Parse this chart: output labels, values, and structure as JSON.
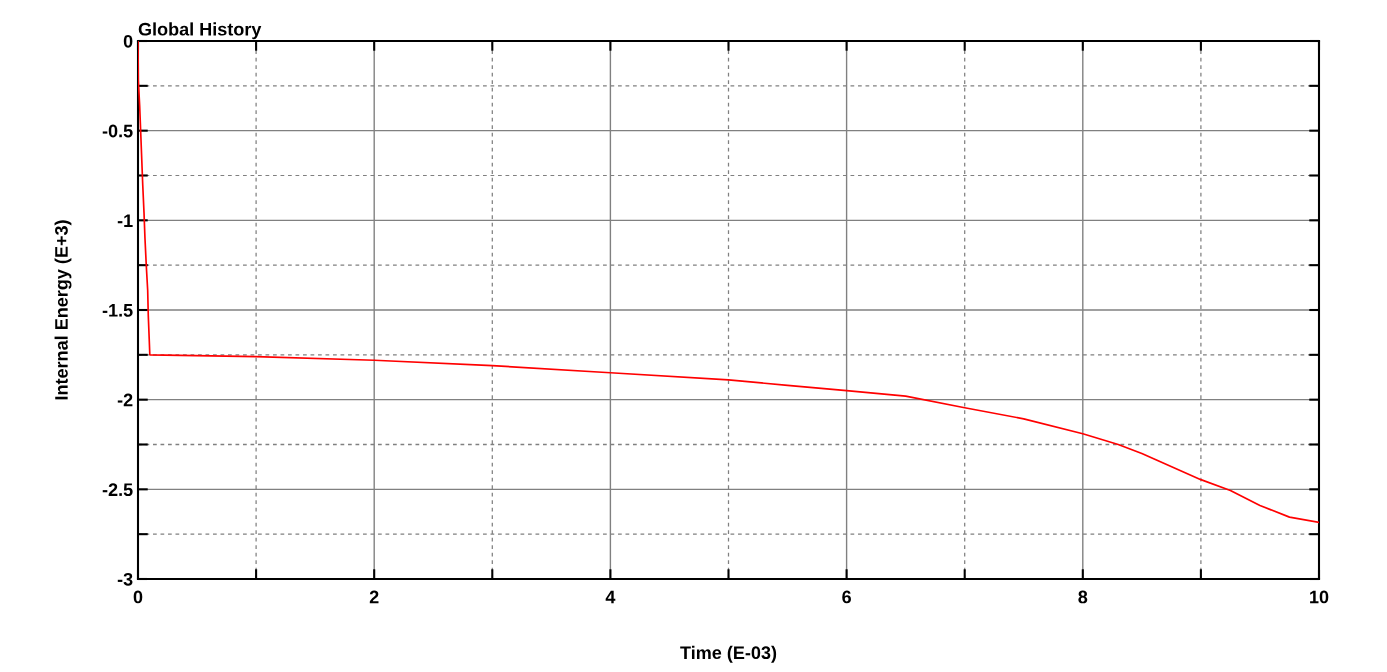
{
  "chart_data": {
    "type": "line",
    "title": "Global History",
    "xlabel": "Time (E-03)",
    "ylabel": "Internal Energy (E+3)",
    "xlim": [
      0,
      10
    ],
    "xticks": [
      0,
      2,
      4,
      6,
      8,
      10
    ],
    "ylim": [
      -3,
      0
    ],
    "yticks": [
      -3,
      -2.5,
      -2,
      -1.5,
      -1,
      -0.5,
      0
    ],
    "grid": true,
    "marker": "none",
    "line_style": "solid",
    "series": [
      {
        "color": "#ff0000",
        "x": [
          0,
          0.003,
          0.014,
          0.023,
          0.04,
          0.051,
          0.059,
          0.07,
          0.082,
          0.087,
          0.096,
          0.1,
          1,
          2,
          3,
          4,
          5,
          5.5,
          6,
          6.5,
          7,
          7.5,
          8,
          8.3,
          8.5,
          8.6,
          9,
          9.25,
          9.5,
          9.75,
          10
        ],
        "values": [
          0,
          -0.22,
          -0.36,
          -0.51,
          -0.8,
          -0.96,
          -1.1,
          -1.25,
          -1.39,
          -1.53,
          -1.68,
          -1.75,
          -1.76,
          -1.78,
          -1.81,
          -1.85,
          -1.89,
          -1.92,
          -1.95,
          -1.98,
          -2.045,
          -2.107,
          -2.19,
          -2.25,
          -2.3,
          -2.33,
          -2.446,
          -2.506,
          -2.59,
          -2.655,
          -2.684
        ]
      }
    ]
  }
}
